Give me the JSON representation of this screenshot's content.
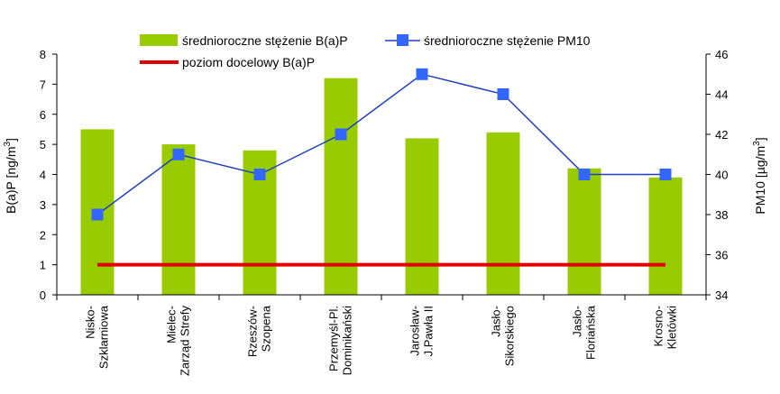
{
  "chart_data": {
    "type": "bar",
    "categories": [
      [
        "Nisko-",
        "Szklarniowa"
      ],
      [
        "Mielec-",
        "Zarząd Strefy"
      ],
      [
        "Rzeszów-",
        "Szopena"
      ],
      [
        "Przemyśl-Pl.",
        "Dominikański"
      ],
      [
        "Jarosław-",
        "J.Pawła II"
      ],
      [
        "Jasło-",
        "Sikorskiego"
      ],
      [
        "Jasło-",
        "Floriańska"
      ],
      [
        "Krosno-",
        "Kletówki"
      ]
    ],
    "series": [
      {
        "name": "średnioroczne stężenie B(a)P",
        "type": "bar",
        "axis": "left",
        "color": "#99cc00",
        "values": [
          5.5,
          5.0,
          4.8,
          7.2,
          5.2,
          5.4,
          4.2,
          3.9
        ]
      },
      {
        "name": "średnioroczne stężenie PM10",
        "type": "line",
        "axis": "right",
        "color": "#1f3fbf",
        "marker_color": "#3366ff",
        "values": [
          38,
          41,
          40,
          42,
          45,
          44,
          40,
          40
        ]
      },
      {
        "name": "poziom docelowy B(a)P",
        "type": "hline",
        "axis": "left",
        "color": "#e00000",
        "value": 1
      }
    ],
    "y_left": {
      "label": "B(a)P [ng/m",
      "label_sup": "3",
      "label_close": "]",
      "ylim": [
        0,
        8
      ],
      "ticks": [
        "0",
        "1",
        "2",
        "3",
        "4",
        "5",
        "6",
        "7",
        "8"
      ]
    },
    "y_right": {
      "label": "PM10 [µg/m",
      "label_sup": "3",
      "label_close": "]",
      "ylim": [
        34,
        46
      ],
      "ticks": [
        "34",
        "36",
        "38",
        "40",
        "42",
        "44",
        "46"
      ]
    },
    "legend": {
      "placement": "top",
      "items": [
        "średnioroczne stężenie B(a)P",
        "średnioroczne stężenie PM10",
        "poziom docelowy B(a)P"
      ]
    },
    "grid": false
  }
}
